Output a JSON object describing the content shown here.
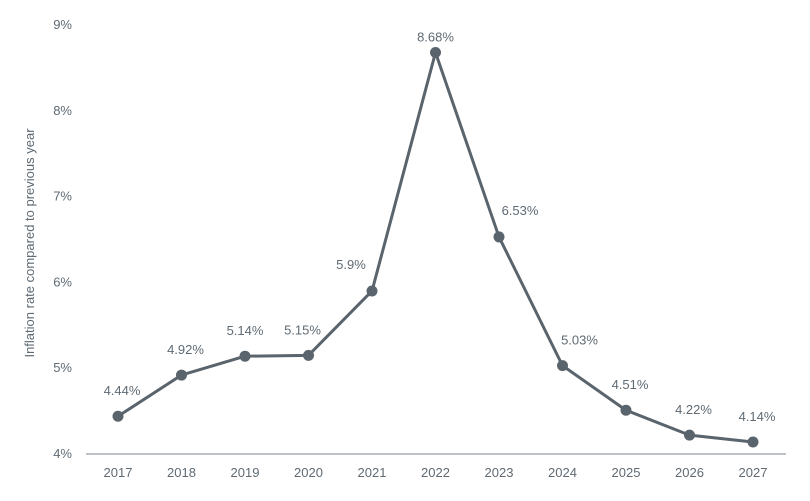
{
  "chart_data": {
    "type": "line",
    "title": "",
    "xlabel": "",
    "ylabel": "Inflation rate compared to previous year",
    "x": [
      "2017",
      "2018",
      "2019",
      "2020",
      "2021",
      "2022",
      "2023",
      "2024",
      "2025",
      "2026",
      "2027"
    ],
    "series": [
      {
        "values": [
          4.44,
          4.92,
          5.14,
          5.15,
          5.9,
          8.68,
          6.53,
          5.03,
          4.51,
          4.22,
          4.14
        ],
        "data_labels": [
          "4.44%",
          "4.92%",
          "5.14%",
          "5.15%",
          "5.9%",
          "8.68%",
          "6.53%",
          "5.03%",
          "4.51%",
          "4.22%",
          "4.14%"
        ]
      }
    ],
    "ylim": [
      4,
      9
    ],
    "yticks": [
      4,
      5,
      6,
      7,
      8,
      9
    ],
    "ytick_labels": [
      "4%",
      "5%",
      "6%",
      "7%",
      "8%",
      "9%"
    ],
    "grid": false,
    "legend": "none",
    "colors": {
      "series": "#5a646d",
      "text": "#5f6a73",
      "axis": "#7d868d"
    }
  }
}
